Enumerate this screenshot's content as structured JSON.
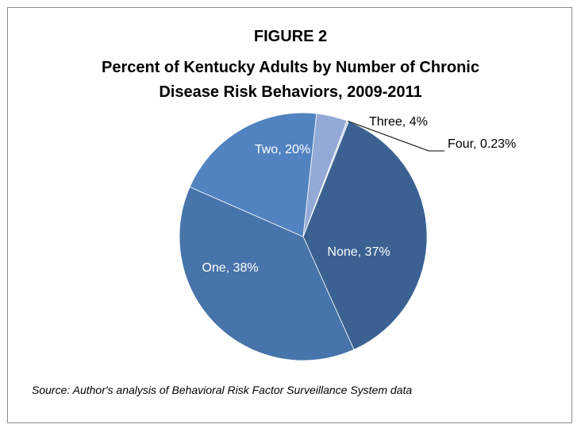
{
  "chart_data": {
    "type": "pie",
    "title_line1": "FIGURE 2",
    "title_line2": "Percent of Kentucky Adults by Number of Chronic",
    "title_line3": "Disease Risk Behaviors, 2009-2011",
    "slices": [
      {
        "label": "None",
        "value": 37,
        "display": "None, 37%",
        "color": "#3a6191"
      },
      {
        "label": "One",
        "value": 38,
        "display": "One, 38%",
        "color": "#4774aa"
      },
      {
        "label": "Two",
        "value": 20,
        "display": "Two, 20%",
        "color": "#5283c1"
      },
      {
        "label": "Three",
        "value": 4,
        "display": "Three, 4%",
        "color": "#93a9d6"
      },
      {
        "label": "Four",
        "value": 0.23,
        "display": "Four, 0.23%",
        "color": "#c9d4ea"
      }
    ],
    "source": "Source: Author's analysis of Behavioral Risk Factor Surveillance System data"
  }
}
